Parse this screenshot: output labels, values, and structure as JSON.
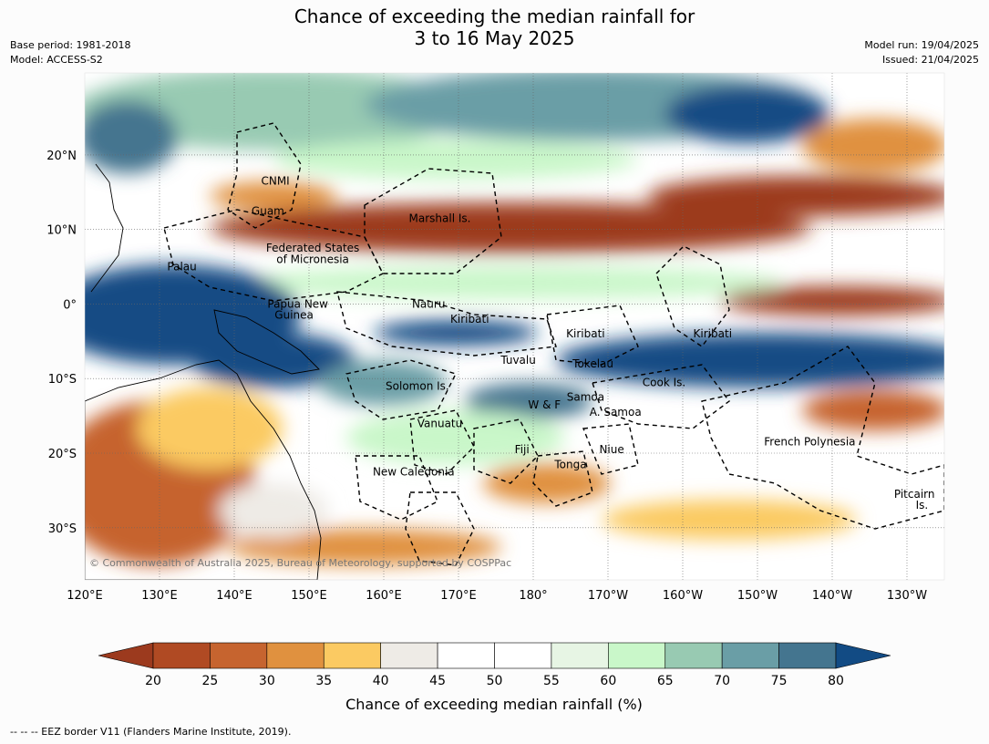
{
  "title": {
    "line1": "Chance of exceeding the median rainfall for",
    "line2": "3 to 16 May 2025"
  },
  "meta_left": {
    "base_period": "Base period: 1981-2018",
    "model": "Model: ACCESS-S2"
  },
  "meta_right": {
    "model_run": "Model run: 19/04/2025",
    "issued": "Issued: 21/04/2025"
  },
  "map": {
    "lon_range_deg_east": [
      120,
      235
    ],
    "lat_range_deg": [
      -37,
      31
    ],
    "lon_labels": [
      "120°E",
      "130°E",
      "140°E",
      "150°E",
      "160°E",
      "170°E",
      "180°",
      "170°W",
      "160°W",
      "150°W",
      "140°W",
      "130°W"
    ],
    "lat_labels": [
      "20°N",
      "10°N",
      "0°",
      "10°S",
      "20°S",
      "30°S"
    ],
    "places": [
      {
        "name": "CNMI",
        "lon": 145.5,
        "lat": 16.5
      },
      {
        "name": "Guam",
        "lon": 144.5,
        "lat": 12.5
      },
      {
        "name": "Marshall Is.",
        "lon": 167.5,
        "lat": 11.5
      },
      {
        "name": "Federated States",
        "lon": 150.5,
        "lat": 7.5
      },
      {
        "name": "of Micronesia",
        "lon": 150.5,
        "lat": 6
      },
      {
        "name": "Palau",
        "lon": 133,
        "lat": 5
      },
      {
        "name": "Papua New",
        "lon": 148.5,
        "lat": 0
      },
      {
        "name": "Guinea",
        "lon": 148,
        "lat": -1.5
      },
      {
        "name": "Nauru",
        "lon": 166,
        "lat": 0
      },
      {
        "name": "Kiribati",
        "lon": 171.5,
        "lat": -2
      },
      {
        "name": "Kiribati",
        "lon": 187,
        "lat": -4
      },
      {
        "name": "Kiribati",
        "lon": 204,
        "lat": -4
      },
      {
        "name": "Tuvalu",
        "lon": 178,
        "lat": -7.5
      },
      {
        "name": "Tokelau",
        "lon": 188,
        "lat": -8
      },
      {
        "name": "Solomon Is.",
        "lon": 164.5,
        "lat": -11
      },
      {
        "name": "Cook Is.",
        "lon": 197.5,
        "lat": -10.5
      },
      {
        "name": "Samoa",
        "lon": 187,
        "lat": -12.5
      },
      {
        "name": "W & F",
        "lon": 181.5,
        "lat": -13.5
      },
      {
        "name": "A. Samoa",
        "lon": 191,
        "lat": -14.5
      },
      {
        "name": "Vanuatu",
        "lon": 167.5,
        "lat": -16
      },
      {
        "name": "Niue",
        "lon": 190.5,
        "lat": -19.5
      },
      {
        "name": "Fiji",
        "lon": 178.5,
        "lat": -19.5
      },
      {
        "name": "French Polynesia",
        "lon": 217,
        "lat": -18.5
      },
      {
        "name": "Tonga",
        "lon": 185,
        "lat": -21.5
      },
      {
        "name": "New Caledonia",
        "lon": 164,
        "lat": -22.5
      },
      {
        "name": "Pitcairn",
        "lon": 231,
        "lat": -25.5
      },
      {
        "name": "Is.",
        "lon": 232,
        "lat": -27
      }
    ],
    "copyright": "© Commonwealth of Australia 2025, Bureau of Meteorology, supported by COSPPac"
  },
  "colorbar": {
    "ticks": [
      "20",
      "25",
      "30",
      "35",
      "40",
      "45",
      "50",
      "55",
      "60",
      "65",
      "70",
      "75",
      "80"
    ],
    "colors": [
      "#9c3a1e",
      "#b04a23",
      "#c6642f",
      "#e0913f",
      "#fbca62",
      "#eeebe6",
      "#ffffff",
      "#ffffff",
      "#e7f5e4",
      "#c9f7c9",
      "#98cab2",
      "#6a9ea6",
      "#44758f",
      "#124b84"
    ],
    "title": "Chance of exceeding median rainfall (%)"
  },
  "footer": "--  --  -- EEZ border V11 (Flanders Marine Institute, 2019)."
}
